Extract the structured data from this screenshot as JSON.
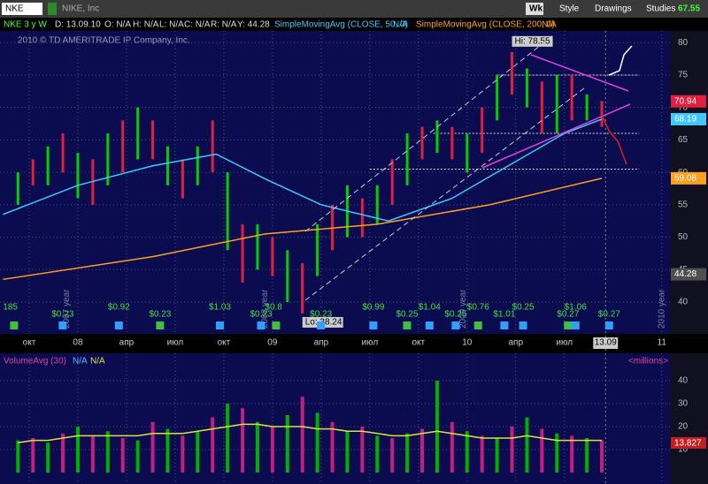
{
  "toolbar": {
    "symbol": "NKE",
    "company": "NIKE, Inc",
    "period": "Wk",
    "buttons": [
      "Style",
      "Drawings",
      "Studies"
    ],
    "last": "67.55"
  },
  "chart_data": {
    "type": "range-bar",
    "info": [
      "NKE 3 y W",
      "D: 13.09.10",
      "O: N/A",
      "H: N/A",
      "L: N/A",
      "C: N/A",
      "R: N/A",
      "Y: 44.28"
    ],
    "study_labels": [
      {
        "label": "SimpleMovingAvg (CLOSE, 50, 0)",
        "color": "#40c8ff"
      },
      {
        "label": "N/A",
        "color": "#40c8ff"
      },
      {
        "label": "SimpleMovingAvg (CLOSE, 200, 0)",
        "color": "#ffa020"
      },
      {
        "label": "N/A",
        "color": "#ffa020"
      }
    ],
    "copyright": "2010 © TD AMERITRADE IP Company, Inc.",
    "x": [
      -16,
      -12,
      -8,
      -4,
      0,
      4,
      8,
      12,
      16,
      20,
      24,
      28,
      32,
      36,
      40,
      44,
      48,
      52,
      56,
      60,
      64,
      68,
      72,
      76,
      80,
      84,
      88,
      92,
      96,
      100,
      104,
      108,
      112,
      116,
      120,
      124,
      128,
      132,
      136,
      140
    ],
    "high": [
      60,
      62,
      64,
      66,
      63,
      62,
      66,
      68,
      70,
      68,
      64,
      62,
      64,
      68,
      60,
      52,
      52,
      50,
      48,
      46,
      52,
      55,
      58,
      56,
      58,
      62,
      66,
      67,
      68,
      67,
      66,
      70,
      75,
      78.55,
      76,
      74,
      75,
      75,
      72,
      71
    ],
    "low": [
      55,
      58,
      58,
      60,
      56,
      55,
      58,
      60,
      62,
      62,
      58,
      56,
      58,
      60,
      48,
      43,
      45,
      44,
      40,
      38.24,
      44,
      48,
      50,
      50,
      52,
      55,
      58,
      62,
      63,
      62,
      60,
      63,
      68,
      72,
      70,
      66,
      66,
      68,
      68,
      67
    ],
    "colors": [
      "#00d000",
      "#e02040"
    ],
    "xlim": [
      -20.8,
      158.2
    ],
    "xticks": [
      {
        "value": -13,
        "label": "окт"
      },
      {
        "value": 0,
        "label": "08"
      },
      {
        "value": 13,
        "label": "апр"
      },
      {
        "value": 26,
        "label": "июл"
      },
      {
        "value": 39,
        "label": "окт"
      },
      {
        "value": 52,
        "label": "09"
      },
      {
        "value": 65,
        "label": "апр"
      },
      {
        "value": 78,
        "label": "июл"
      },
      {
        "value": 91,
        "label": "окт"
      },
      {
        "value": 104,
        "label": "10"
      },
      {
        "value": 117,
        "label": "апр"
      },
      {
        "value": 130,
        "label": "июл"
      },
      {
        "value": 156,
        "label": "11"
      }
    ],
    "current_date": {
      "label": "13.09",
      "value": 141
    },
    "ylim": [
      35.1,
      81.8
    ],
    "yticks": [
      40,
      45,
      50,
      55,
      60,
      65,
      70,
      75,
      80
    ],
    "levels": [
      75,
      66,
      60.5
    ],
    "studies": [
      {
        "name": "SMA50",
        "color": "#40c8ff",
        "x": [
          -20,
          0,
          20,
          37,
          50,
          65,
          83,
          100,
          115,
          130,
          140
        ],
        "values": [
          53.5,
          58,
          61,
          62.8,
          59,
          55,
          52.5,
          56,
          61,
          66,
          68.19
        ]
      },
      {
        "name": "SMA200",
        "color": "#ffa020",
        "x": [
          -20,
          20,
          50,
          80,
          110,
          140
        ],
        "values": [
          43.5,
          47,
          50.5,
          52,
          55,
          59.08
        ]
      }
    ],
    "price_labels": [
      {
        "value": 70.94,
        "color": "#e02040"
      },
      {
        "value": 68.19,
        "color": "#40c8ff"
      },
      {
        "value": 59.08,
        "color": "#ffa020"
      },
      {
        "value": 44.28,
        "color": "#505050"
      }
    ],
    "hi": {
      "label": "Hi: 78.55",
      "value": 78.55,
      "x": 116
    },
    "lo": {
      "label": "Lo: 38.24",
      "value": 38.24,
      "x": 60
    },
    "year_labels": [
      {
        "label": "2007 year",
        "x": -3
      },
      {
        "label": "2008 year",
        "x": 50
      },
      {
        "label": "2009 year",
        "x": 103
      },
      {
        "label": "2010 year",
        "x": 156
      }
    ],
    "events": [
      {
        "label": "185",
        "x": -20
      },
      {
        "label": "$0.23",
        "x": -7
      },
      {
        "label": "$0.92",
        "x": 8
      },
      {
        "label": "$0.23",
        "x": 19
      },
      {
        "label": "$1.03",
        "x": 35
      },
      {
        "label": "$0.23",
        "x": 46
      },
      {
        "label": "$0.8",
        "x": 50
      },
      {
        "label": "$0.23",
        "x": 62
      },
      {
        "label": "$0.99",
        "x": 76
      },
      {
        "label": "$0.25",
        "x": 85
      },
      {
        "label": "$1.04",
        "x": 91
      },
      {
        "label": "$0.25",
        "x": 98
      },
      {
        "label": "$0.76",
        "x": 104
      },
      {
        "label": "$1.01",
        "x": 111
      },
      {
        "label": "$0.25",
        "x": 116
      },
      {
        "label": "$0.27",
        "x": 128
      },
      {
        "label": "$1.06",
        "x": 130
      },
      {
        "label": "$0.27",
        "x": 139
      }
    ],
    "volume": {
      "title": "VolumeAvg (30)",
      "na": [
        "N/A",
        "N/A"
      ],
      "unit": "<millions>",
      "last": "13.827",
      "values": [
        14,
        15,
        13,
        17,
        20,
        16,
        18,
        15,
        14,
        22,
        19,
        16,
        18,
        24,
        30,
        28,
        22,
        20,
        25,
        33,
        26,
        22,
        18,
        20,
        16,
        15,
        17,
        19,
        40,
        22,
        18,
        16,
        15,
        20,
        24,
        19,
        17,
        16,
        15,
        14
      ],
      "avg": [
        13,
        14,
        14,
        15,
        16,
        16,
        16,
        16,
        16,
        17,
        17,
        17,
        18,
        19,
        20,
        21,
        21,
        20,
        20,
        20,
        19,
        19,
        18,
        18,
        17,
        16,
        16,
        17,
        18,
        17,
        16,
        15,
        15,
        15,
        16,
        15,
        14,
        14,
        14,
        14
      ],
      "avg_color": "#e0e040",
      "ylim": [
        0,
        45
      ],
      "yticks": [
        10,
        20,
        30,
        40
      ]
    }
  }
}
